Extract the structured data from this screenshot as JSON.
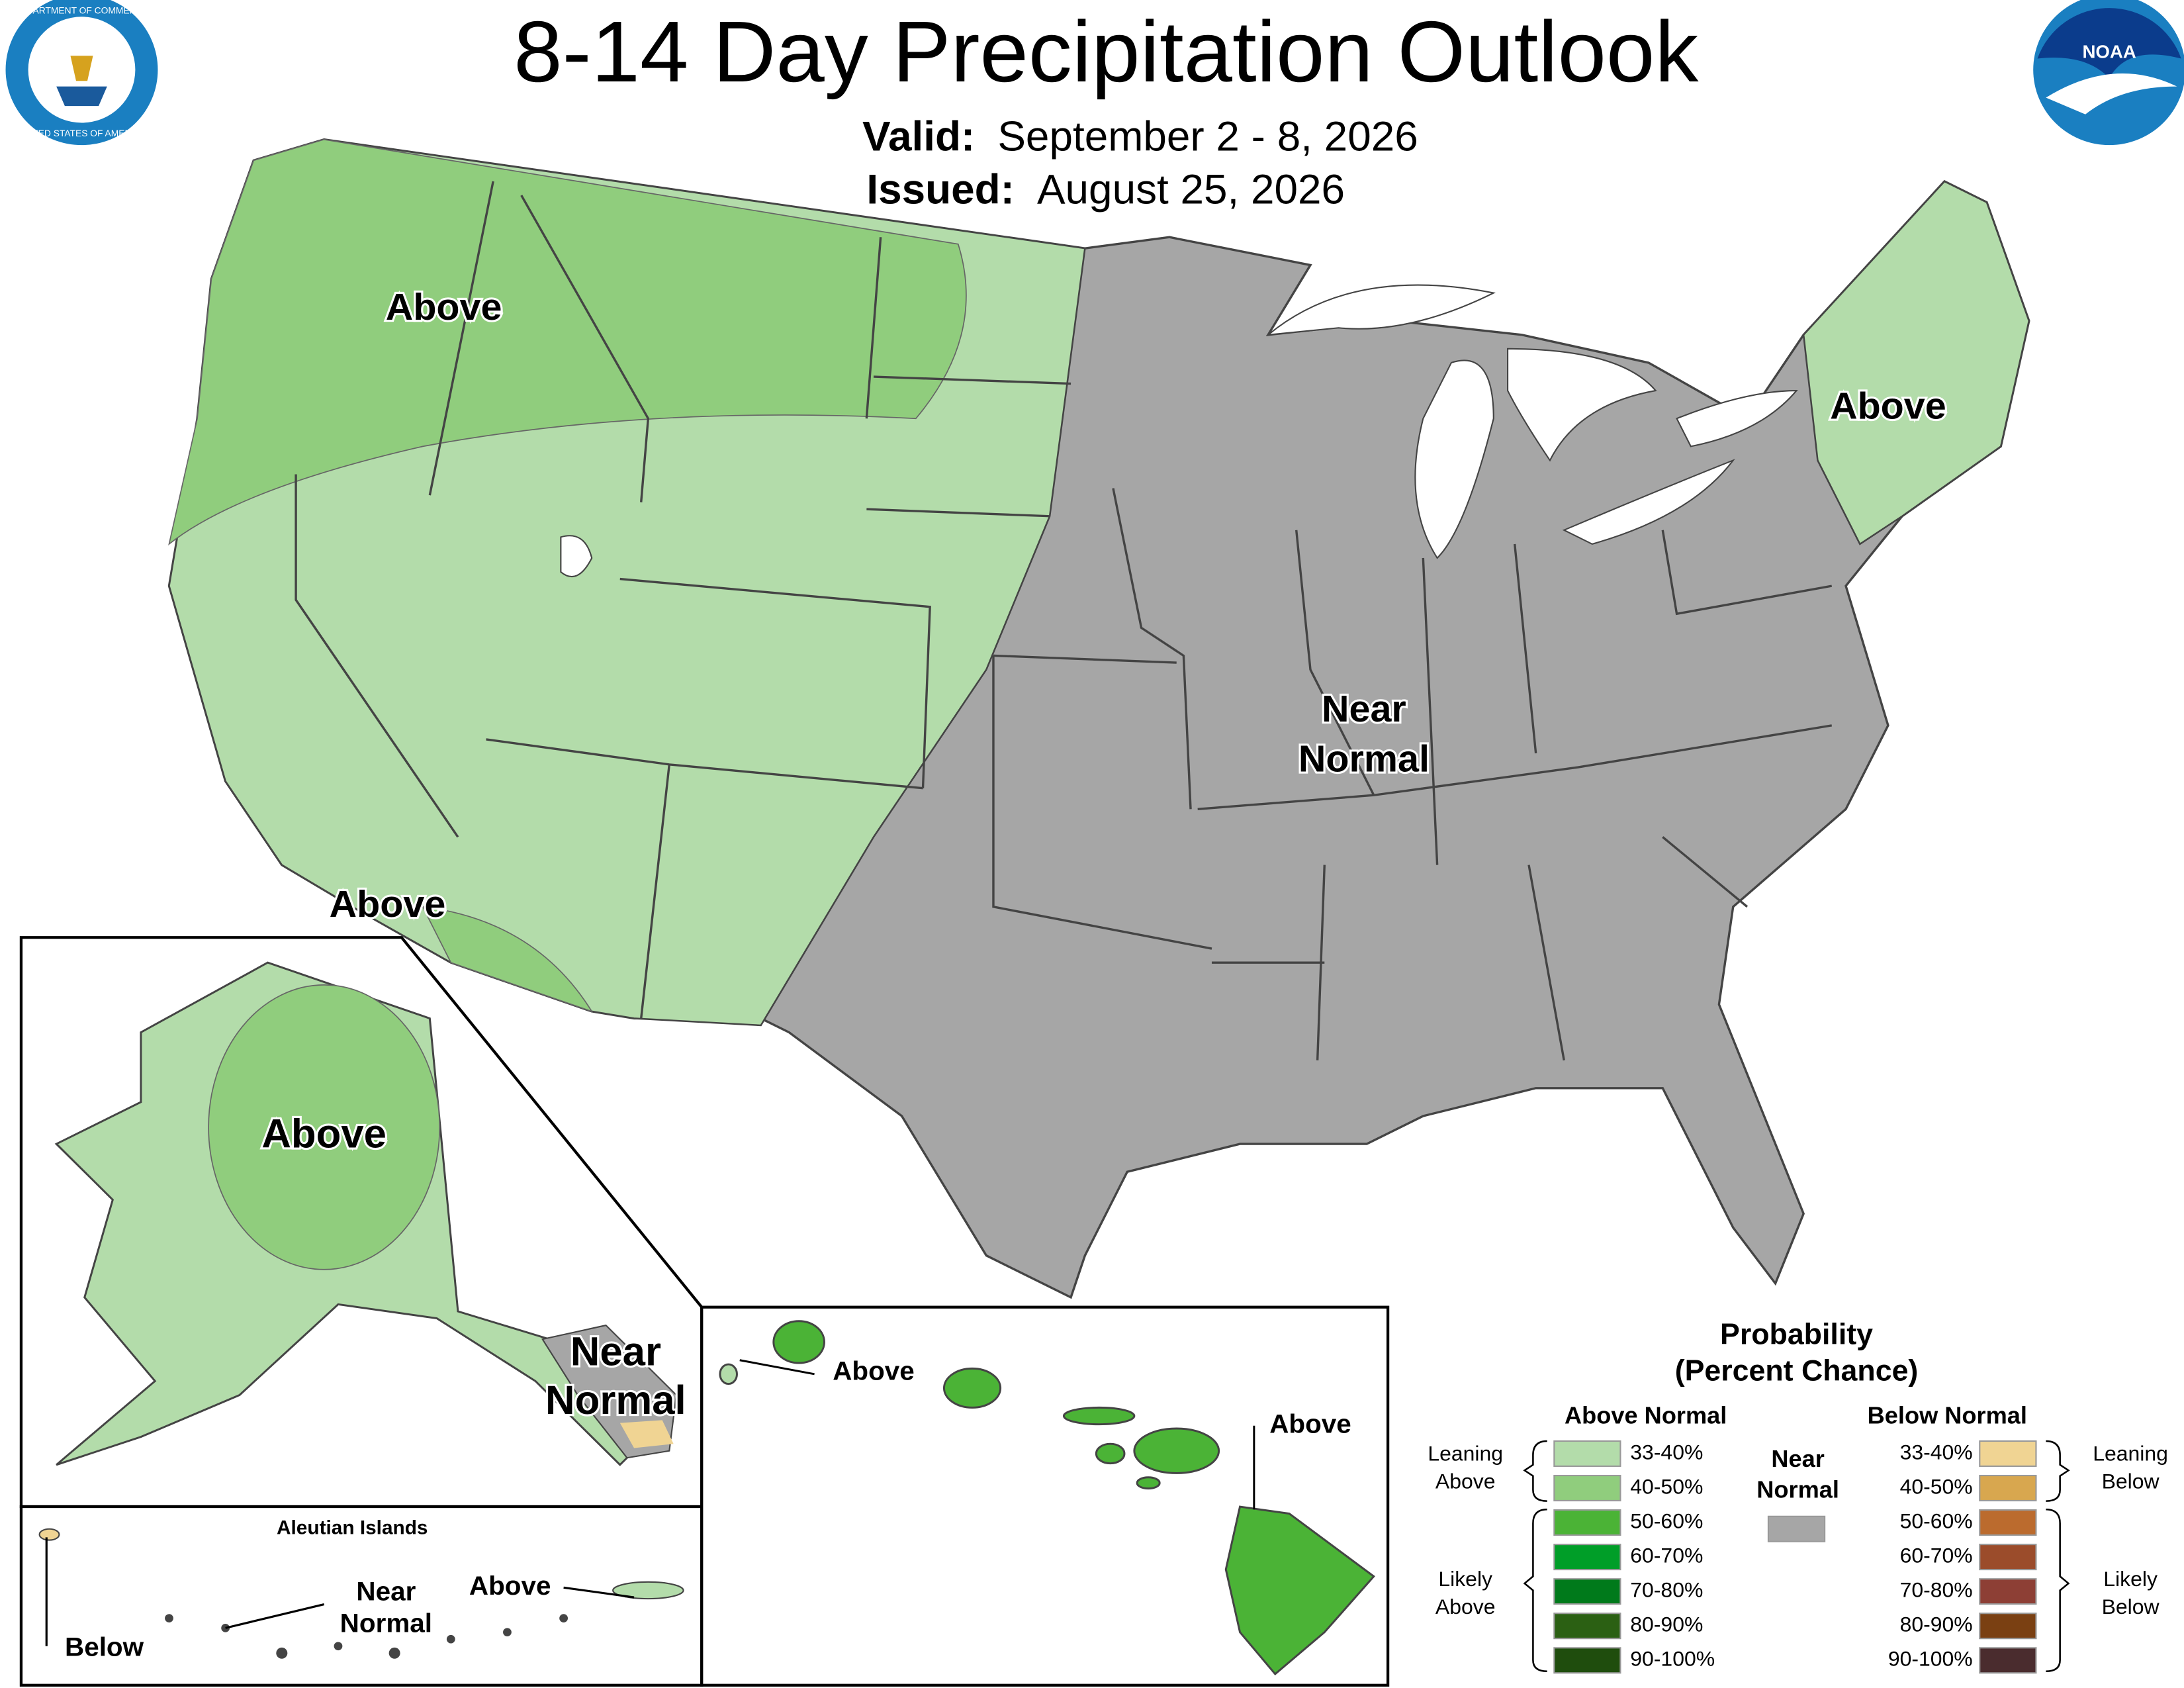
{
  "header": {
    "title": "8-14 Day Precipitation Outlook",
    "valid_label": "Valid:",
    "valid": "September 2 - 8, 2026",
    "issued_label": "Issued:",
    "issued": "August 25, 2026"
  },
  "logos": {
    "commerce_top": "DEPARTMENT OF COMMERCE",
    "commerce_bottom": "UNITED STATES OF AMERICA",
    "noaa": "NOAA"
  },
  "map_labels": {
    "northwest": "Above",
    "northeast": "Above",
    "southwest": "Above",
    "central": [
      "Near",
      "Normal"
    ],
    "alaska_above": "Above",
    "alaska_near": [
      "Near",
      "Normal"
    ],
    "aleutian_title": "Aleutian Islands",
    "aleutian_below": "Below",
    "aleutian_near": [
      "Near",
      "Normal"
    ],
    "aleutian_above": "Above",
    "hawaii_west": "Above",
    "hawaii_east": "Above"
  },
  "legend": {
    "title": [
      "Probability",
      "(Percent Chance)"
    ],
    "above": {
      "heading": "Above Normal",
      "items": [
        {
          "label": "33-40%",
          "color": "#b3dcaa"
        },
        {
          "label": "40-50%",
          "color": "#90cd7d"
        },
        {
          "label": "50-60%",
          "color": "#4bb336"
        },
        {
          "label": "60-70%",
          "color": "#009e28"
        },
        {
          "label": "70-80%",
          "color": "#007a1b"
        },
        {
          "label": "80-90%",
          "color": "#2b6013"
        },
        {
          "label": "90-100%",
          "color": "#1f4d0d"
        }
      ]
    },
    "below": {
      "heading": "Below Normal",
      "items": [
        {
          "label": "33-40%",
          "color": "#f0d493"
        },
        {
          "label": "40-50%",
          "color": "#d8a74f"
        },
        {
          "label": "50-60%",
          "color": "#bb6b2e"
        },
        {
          "label": "60-70%",
          "color": "#9b4c2b"
        },
        {
          "label": "70-80%",
          "color": "#8d3f35"
        },
        {
          "label": "80-90%",
          "color": "#7a4012"
        },
        {
          "label": "90-100%",
          "color": "#4a2c2e"
        }
      ]
    },
    "near": {
      "heading": [
        "Near",
        "Normal"
      ],
      "color": "#a6a6a6"
    },
    "leaning_above": [
      "Leaning",
      "Above"
    ],
    "likely_above": [
      "Likely",
      "Above"
    ],
    "leaning_below": [
      "Leaning",
      "Below"
    ],
    "likely_below": [
      "Likely",
      "Below"
    ]
  }
}
